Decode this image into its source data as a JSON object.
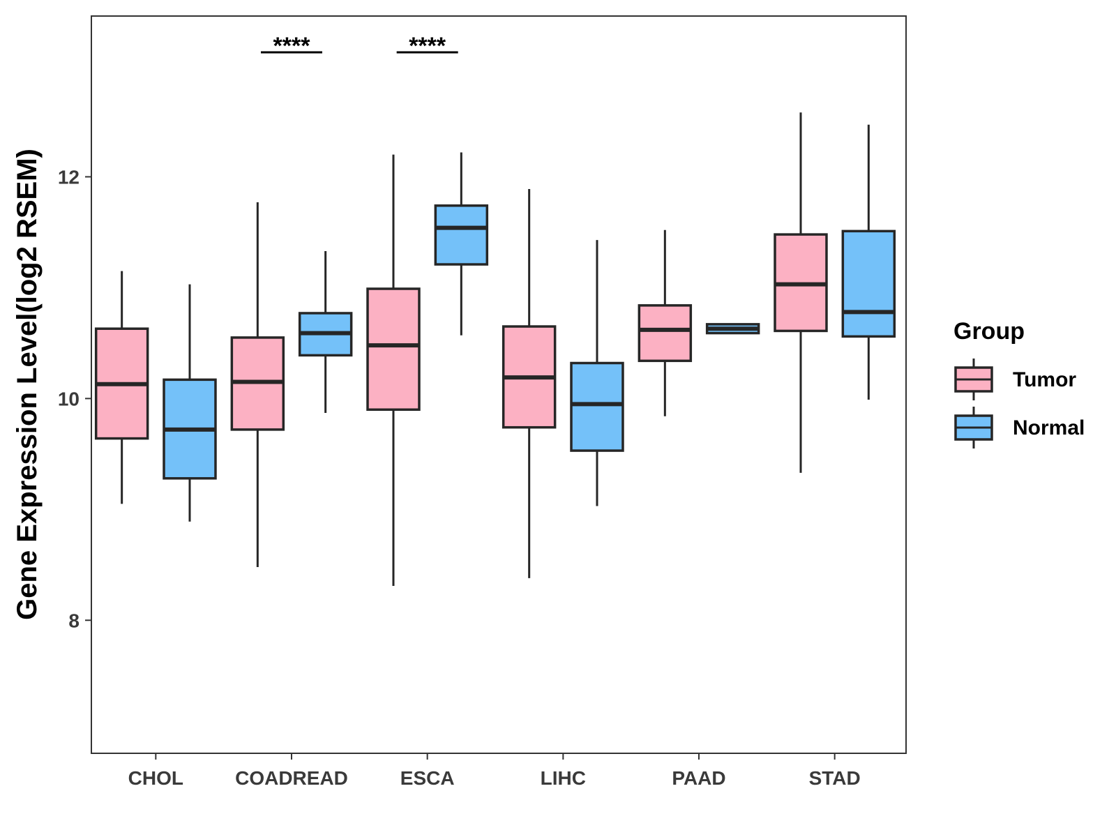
{
  "chart_data": {
    "type": "boxplot",
    "title": "",
    "xlabel": "",
    "ylabel": "Gene Expression Level(log2 RSEM)",
    "ylim": [
      6.8,
      13.45
    ],
    "yticks": [
      8,
      10,
      12
    ],
    "ytick_labels": [
      "8",
      "10",
      "12"
    ],
    "categories": [
      "CHOL",
      "COADREAD",
      "ESCA",
      "LIHC",
      "PAAD",
      "STAD"
    ],
    "grid": false,
    "legend": {
      "title": "Group",
      "position": "right",
      "entries": [
        {
          "name": "Tumor",
          "color": "#FCB1C3"
        },
        {
          "name": "Normal",
          "color": "#74C1F9"
        }
      ]
    },
    "series": [
      {
        "name": "Tumor",
        "color": "#FCB1C3",
        "boxes": [
          {
            "category": "CHOL",
            "whisker_low": 9.05,
            "q1": 9.64,
            "median": 10.13,
            "q3": 10.63,
            "whisker_high": 11.15
          },
          {
            "category": "COADREAD",
            "whisker_low": 8.48,
            "q1": 9.72,
            "median": 10.15,
            "q3": 10.55,
            "whisker_high": 11.77
          },
          {
            "category": "ESCA",
            "whisker_low": 8.31,
            "q1": 9.9,
            "median": 10.48,
            "q3": 10.99,
            "whisker_high": 12.2
          },
          {
            "category": "LIHC",
            "whisker_low": 8.38,
            "q1": 9.74,
            "median": 10.19,
            "q3": 10.65,
            "whisker_high": 11.89
          },
          {
            "category": "PAAD",
            "whisker_low": 9.84,
            "q1": 10.34,
            "median": 10.62,
            "q3": 10.84,
            "whisker_high": 11.52
          },
          {
            "category": "STAD",
            "whisker_low": 9.33,
            "q1": 10.61,
            "median": 11.03,
            "q3": 11.48,
            "whisker_high": 12.58
          }
        ]
      },
      {
        "name": "Normal",
        "color": "#74C1F9",
        "boxes": [
          {
            "category": "CHOL",
            "whisker_low": 8.89,
            "q1": 9.28,
            "median": 9.72,
            "q3": 10.17,
            "whisker_high": 11.03
          },
          {
            "category": "COADREAD",
            "whisker_low": 9.87,
            "q1": 10.39,
            "median": 10.59,
            "q3": 10.77,
            "whisker_high": 11.33
          },
          {
            "category": "ESCA",
            "whisker_low": 10.57,
            "q1": 11.21,
            "median": 11.54,
            "q3": 11.74,
            "whisker_high": 12.22
          },
          {
            "category": "LIHC",
            "whisker_low": 9.03,
            "q1": 9.53,
            "median": 9.95,
            "q3": 10.32,
            "whisker_high": 11.43
          },
          {
            "category": "PAAD",
            "whisker_low": 10.59,
            "q1": 10.59,
            "median": 10.63,
            "q3": 10.67,
            "whisker_high": 10.67
          },
          {
            "category": "STAD",
            "whisker_low": 9.99,
            "q1": 10.56,
            "median": 10.78,
            "q3": 11.51,
            "whisker_high": 12.47
          }
        ]
      }
    ],
    "annotations": [
      {
        "category": "COADREAD",
        "label": "****"
      },
      {
        "category": "ESCA",
        "label": "****"
      }
    ]
  }
}
